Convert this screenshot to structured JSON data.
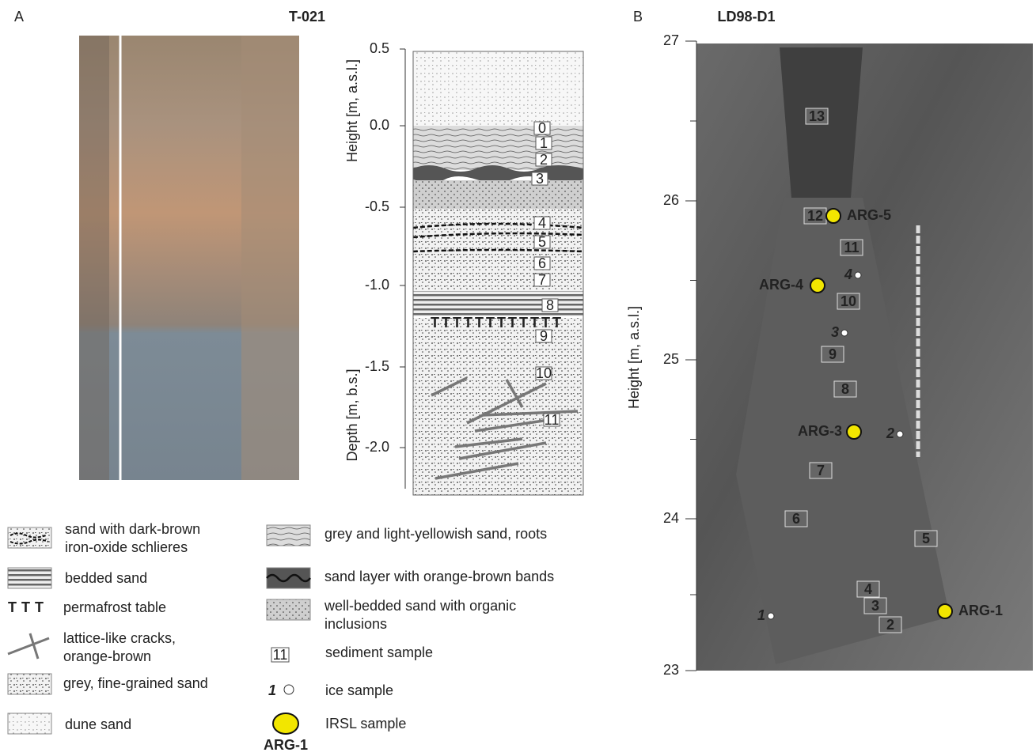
{
  "panel_a": {
    "letter": "A",
    "title": "T-021",
    "height_axis_label": "Height  [m, a.s.l.]",
    "depth_axis_label": "Depth  [m, b.s.]",
    "ticks": [
      "0.5",
      "0.0",
      "-0.5",
      "-1.0",
      "-1.5",
      "-2.0"
    ],
    "layer_labels": [
      "0",
      "1",
      "2",
      "3",
      "4",
      "5",
      "6",
      "7",
      "8",
      "9",
      "10",
      "11"
    ]
  },
  "panel_b": {
    "letter": "B",
    "title": "LD98-D1",
    "axis_label": "Height [m, a.s.l.]",
    "ticks": [
      "27",
      "26",
      "25",
      "24",
      "23"
    ],
    "sediment_samples": [
      "13",
      "12",
      "11",
      "10",
      "9",
      "8",
      "7",
      "6",
      "5",
      "4",
      "3",
      "2"
    ],
    "ice_samples": [
      "1",
      "2",
      "3",
      "4"
    ],
    "irsl_samples": [
      "ARG-5",
      "ARG-4",
      "ARG-3",
      "ARG-1"
    ]
  },
  "legend": {
    "left": [
      {
        "text": [
          "sand with dark-brown",
          "iron-oxide schlieres"
        ]
      },
      {
        "text": [
          "bedded sand"
        ]
      },
      {
        "text": [
          "permafrost table"
        ]
      },
      {
        "text": [
          "lattice-like cracks,",
          "orange-brown"
        ]
      },
      {
        "text": [
          "grey, fine-grained sand"
        ]
      },
      {
        "text": [
          "dune sand"
        ]
      }
    ],
    "right": [
      {
        "text": [
          "grey and light-yellowish sand, roots"
        ]
      },
      {
        "text": [
          "sand layer with orange-brown bands"
        ]
      },
      {
        "text": [
          "well-bedded sand  with organic",
          "inclusions"
        ]
      },
      {
        "text": [
          "sediment sample"
        ]
      },
      {
        "text": [
          "ice sample"
        ]
      },
      {
        "text": [
          "IRSL sample"
        ]
      }
    ],
    "sediment_symbol": "11",
    "ice_symbol": "1",
    "irsl_symbol": "ARG-1"
  }
}
